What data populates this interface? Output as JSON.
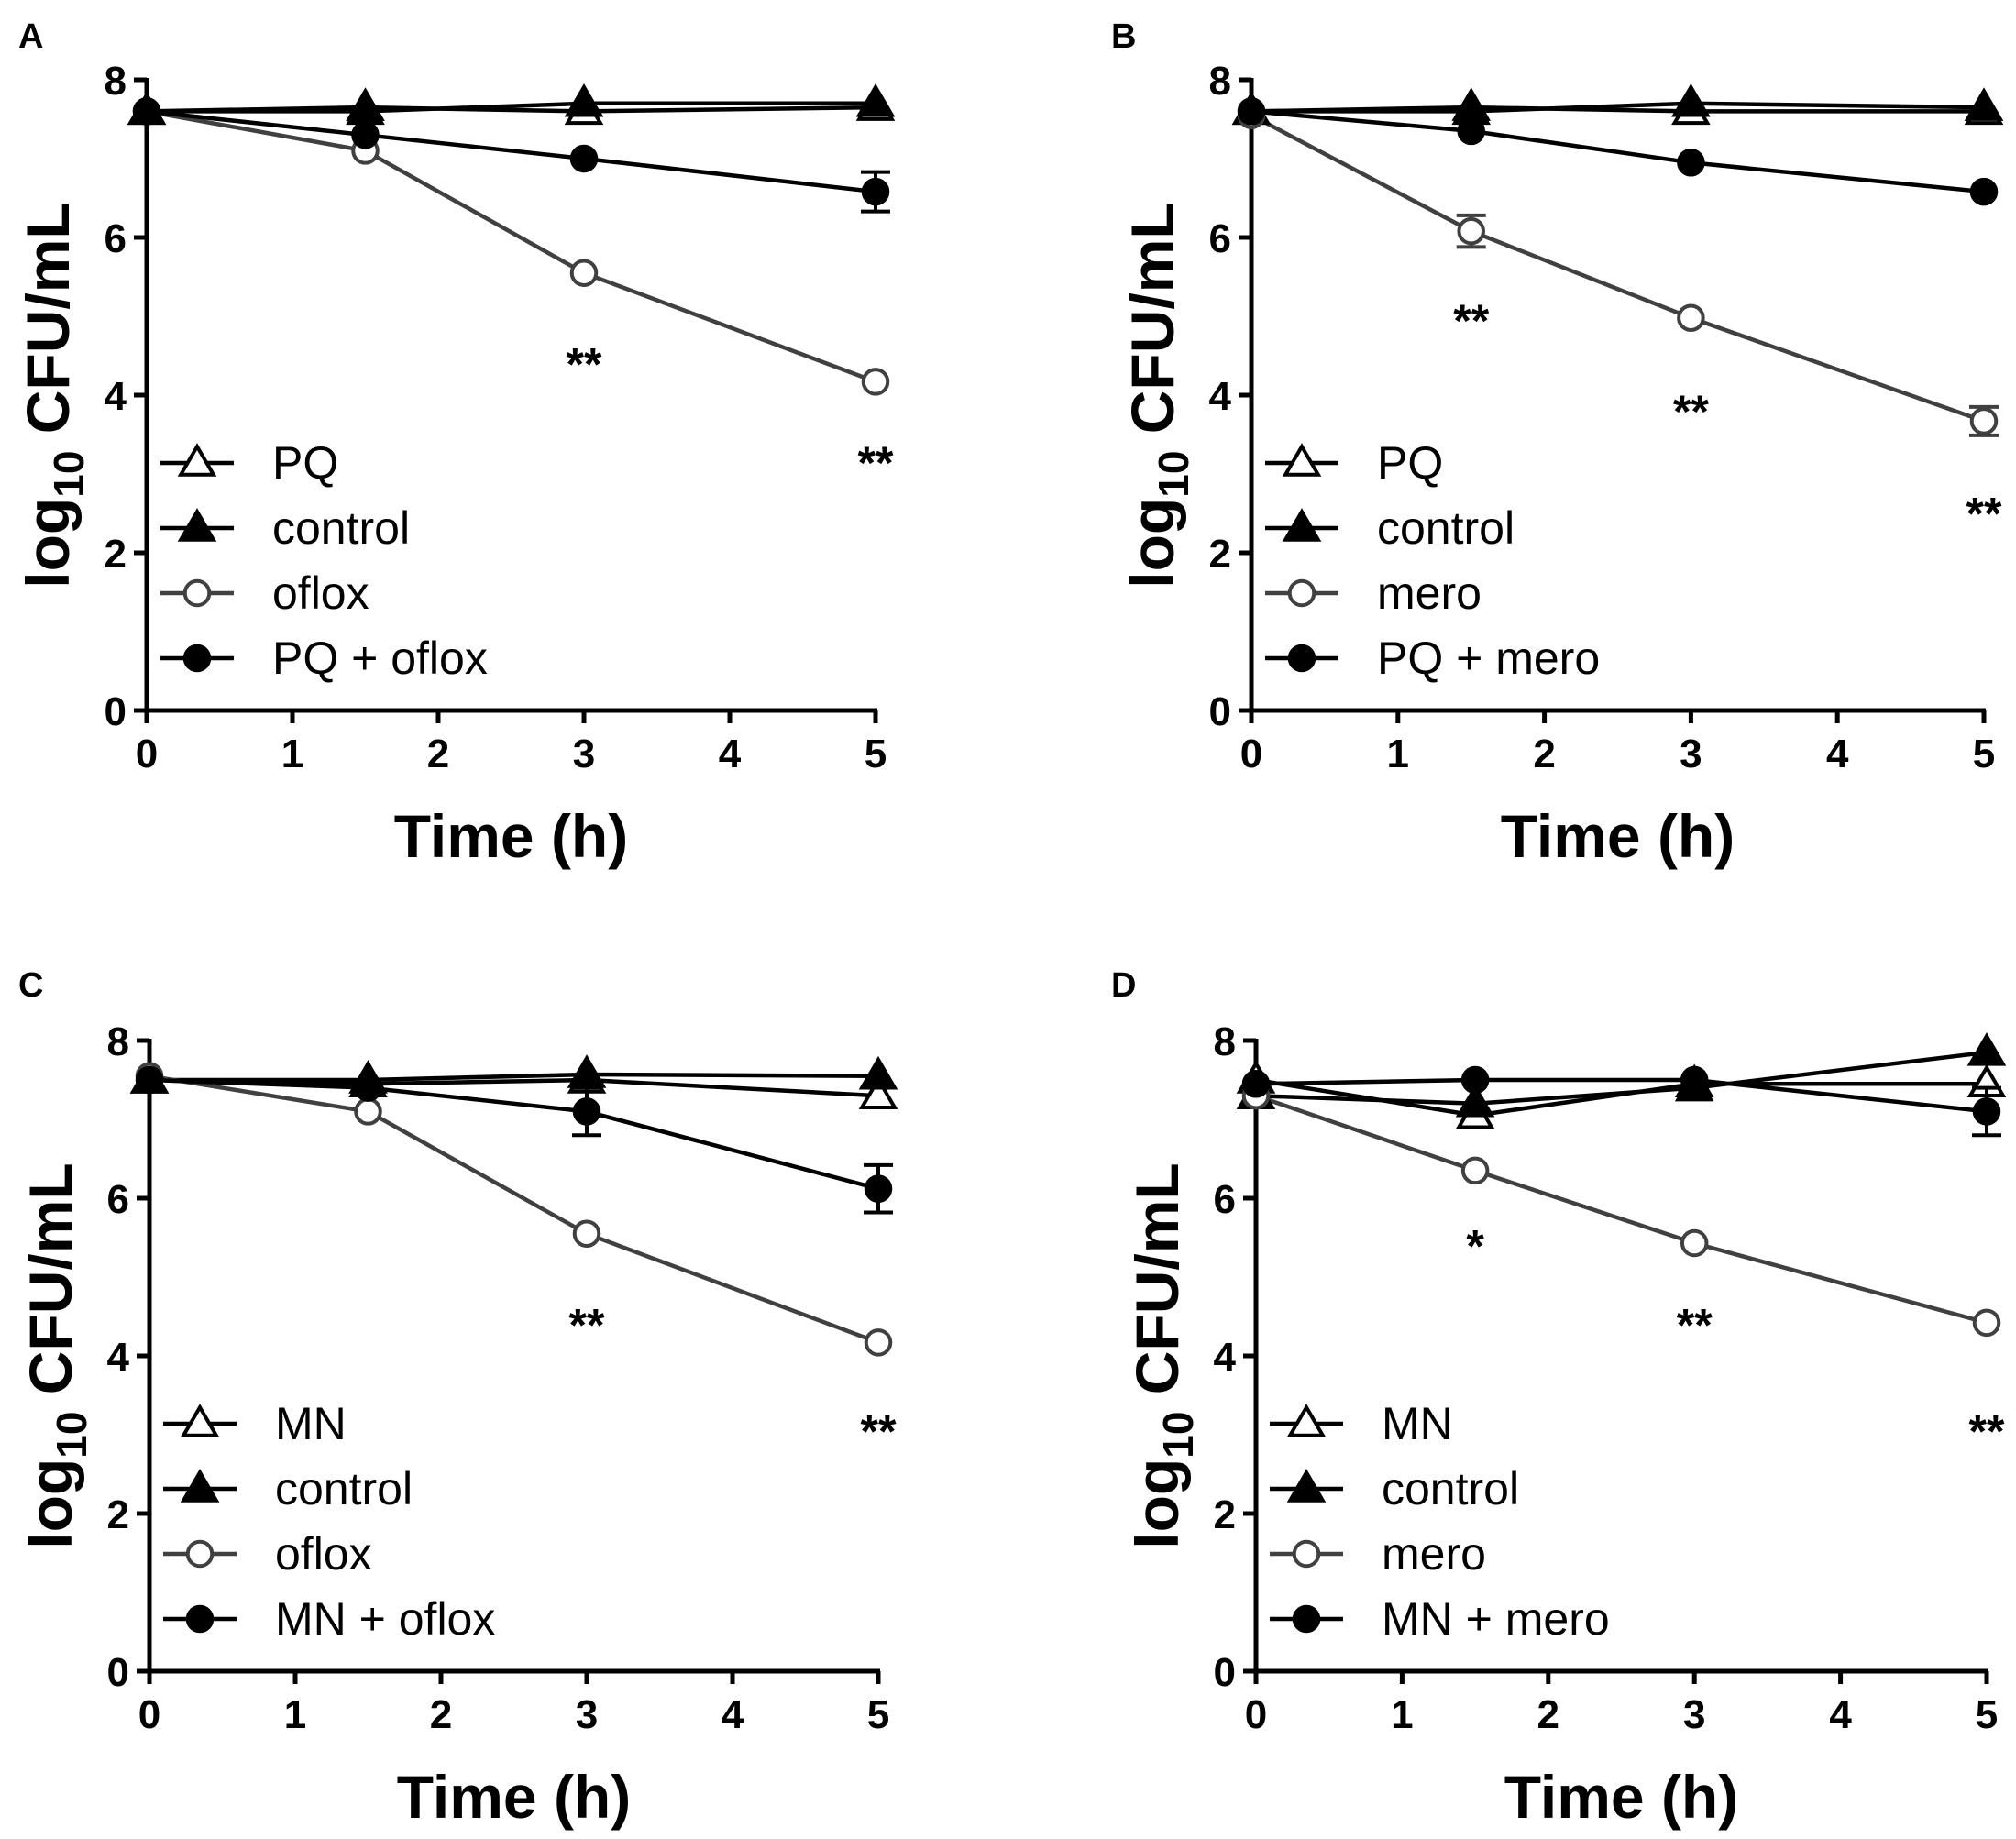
{
  "figure": {
    "background": "#ffffff"
  },
  "colors": {
    "ink": "#000000",
    "grey": "#404040",
    "paper": "#ffffff"
  },
  "chart_data": [
    {
      "panel_label": "A",
      "type": "line",
      "xlabel": "Time (h)",
      "ylabel_main": "log",
      "ylabel_sub": "10",
      "ylabel_tail": " CFU/mL",
      "xlim": [
        0,
        5
      ],
      "ylim": [
        0,
        8
      ],
      "xticks": [
        0,
        1,
        2,
        3,
        4,
        5
      ],
      "yticks": [
        0,
        2,
        4,
        6,
        8
      ],
      "legend_position": "bottom-left",
      "series": [
        {
          "name": "PQ",
          "marker": "triangle-open",
          "color": "#000000",
          "x": [
            0,
            1.5,
            3,
            5
          ],
          "y": [
            7.6,
            7.65,
            7.6,
            7.65
          ],
          "err": [
            0,
            0,
            0,
            0
          ]
        },
        {
          "name": "control",
          "marker": "triangle-filled",
          "color": "#000000",
          "x": [
            0,
            1.5,
            3,
            5
          ],
          "y": [
            7.6,
            7.6,
            7.7,
            7.7
          ],
          "err": [
            0,
            0,
            0,
            0
          ]
        },
        {
          "name": "oflox",
          "marker": "circle-open",
          "color": "#404040",
          "x": [
            0,
            1.5,
            3,
            5
          ],
          "y": [
            7.6,
            7.1,
            5.55,
            4.17
          ],
          "err": [
            0,
            0,
            0,
            0
          ]
        },
        {
          "name": "PQ + oflox",
          "marker": "circle-filled",
          "color": "#000000",
          "x": [
            0,
            1.5,
            3,
            5
          ],
          "y": [
            7.6,
            7.3,
            7.0,
            6.58
          ],
          "err": [
            0,
            0,
            0,
            0.25
          ]
        }
      ],
      "annotations": [
        {
          "text": "**",
          "x": 3,
          "y": 4.45
        },
        {
          "text": "**",
          "x": 5,
          "y": 3.2
        }
      ]
    },
    {
      "panel_label": "B",
      "type": "line",
      "xlabel": "Time (h)",
      "ylabel_main": "log",
      "ylabel_sub": "10",
      "ylabel_tail": " CFU/mL",
      "xlim": [
        0,
        5
      ],
      "ylim": [
        0,
        8
      ],
      "xticks": [
        0,
        1,
        2,
        3,
        4,
        5
      ],
      "yticks": [
        0,
        2,
        4,
        6,
        8
      ],
      "legend_position": "bottom-left",
      "series": [
        {
          "name": "PQ",
          "marker": "triangle-open",
          "color": "#000000",
          "x": [
            0,
            1.5,
            3,
            5
          ],
          "y": [
            7.6,
            7.65,
            7.6,
            7.6
          ],
          "err": [
            0,
            0,
            0,
            0
          ]
        },
        {
          "name": "control",
          "marker": "triangle-filled",
          "color": "#000000",
          "x": [
            0,
            1.5,
            3,
            5
          ],
          "y": [
            7.6,
            7.6,
            7.7,
            7.65
          ],
          "err": [
            0,
            0,
            0,
            0
          ]
        },
        {
          "name": "mero",
          "marker": "circle-open",
          "color": "#404040",
          "x": [
            0,
            1.5,
            3,
            5
          ],
          "y": [
            7.55,
            6.08,
            4.98,
            3.67
          ],
          "err": [
            0,
            0.2,
            0,
            0.18
          ]
        },
        {
          "name": "PQ + mero",
          "marker": "circle-filled",
          "color": "#000000",
          "x": [
            0,
            1.5,
            3,
            5
          ],
          "y": [
            7.6,
            7.35,
            6.95,
            6.58
          ],
          "err": [
            0,
            0,
            0,
            0
          ]
        }
      ],
      "annotations": [
        {
          "text": "**",
          "x": 1.5,
          "y": 5.0
        },
        {
          "text": "**",
          "x": 3,
          "y": 3.85
        },
        {
          "text": "**",
          "x": 5,
          "y": 2.55
        }
      ]
    },
    {
      "panel_label": "C",
      "type": "line",
      "xlabel": "Time (h)",
      "ylabel_main": "log",
      "ylabel_sub": "10",
      "ylabel_tail": " CFU/mL",
      "xlim": [
        0,
        5
      ],
      "ylim": [
        0,
        8
      ],
      "xticks": [
        0,
        1,
        2,
        3,
        4,
        5
      ],
      "yticks": [
        0,
        2,
        4,
        6,
        8
      ],
      "legend_position": "bottom-left",
      "series": [
        {
          "name": "MN",
          "marker": "triangle-open",
          "color": "#000000",
          "x": [
            0,
            1.5,
            3,
            5
          ],
          "y": [
            7.5,
            7.45,
            7.5,
            7.3
          ],
          "err": [
            0,
            0,
            0,
            0
          ]
        },
        {
          "name": "control",
          "marker": "triangle-filled",
          "color": "#000000",
          "x": [
            0,
            1.5,
            3,
            5
          ],
          "y": [
            7.5,
            7.5,
            7.57,
            7.55
          ],
          "err": [
            0,
            0,
            0,
            0
          ]
        },
        {
          "name": "oflox",
          "marker": "circle-open",
          "color": "#404040",
          "x": [
            0,
            1.5,
            3,
            5
          ],
          "y": [
            7.55,
            7.1,
            5.55,
            4.17
          ],
          "err": [
            0,
            0,
            0,
            0
          ]
        },
        {
          "name": "MN + oflox",
          "marker": "circle-filled",
          "color": "#000000",
          "x": [
            0,
            1.5,
            3,
            5
          ],
          "y": [
            7.5,
            7.4,
            7.1,
            6.12
          ],
          "err": [
            0,
            0,
            0.3,
            0.3
          ]
        }
      ],
      "annotations": [
        {
          "text": "**",
          "x": 3,
          "y": 4.45
        },
        {
          "text": "**",
          "x": 5,
          "y": 3.1
        }
      ]
    },
    {
      "panel_label": "D",
      "type": "line",
      "xlabel": "Time (h)",
      "ylabel_main": "log",
      "ylabel_sub": "10",
      "ylabel_tail": " CFU/mL",
      "xlim": [
        0,
        5
      ],
      "ylim": [
        0,
        8
      ],
      "xticks": [
        0,
        1,
        2,
        3,
        4,
        5
      ],
      "yticks": [
        0,
        2,
        4,
        6,
        8
      ],
      "legend_position": "bottom-left",
      "series": [
        {
          "name": "MN",
          "marker": "triangle-open",
          "color": "#000000",
          "x": [
            0,
            1.5,
            3,
            5
          ],
          "y": [
            7.5,
            7.05,
            7.45,
            7.45
          ],
          "err": [
            0,
            0,
            0,
            0
          ]
        },
        {
          "name": "control",
          "marker": "triangle-filled",
          "color": "#000000",
          "x": [
            0,
            1.5,
            3,
            5
          ],
          "y": [
            7.3,
            7.2,
            7.4,
            7.85
          ],
          "err": [
            0,
            0,
            0,
            0
          ]
        },
        {
          "name": "mero",
          "marker": "circle-open",
          "color": "#404040",
          "x": [
            0,
            1.5,
            3,
            5
          ],
          "y": [
            7.3,
            6.35,
            5.43,
            4.42
          ],
          "err": [
            0,
            0,
            0,
            0
          ]
        },
        {
          "name": "MN + mero",
          "marker": "circle-filled",
          "color": "#000000",
          "x": [
            0,
            1.5,
            3,
            5
          ],
          "y": [
            7.45,
            7.5,
            7.5,
            7.1
          ],
          "err": [
            0,
            0,
            0,
            0.3
          ]
        }
      ],
      "annotations": [
        {
          "text": "*",
          "x": 1.5,
          "y": 5.45
        },
        {
          "text": "**",
          "x": 3,
          "y": 4.45
        },
        {
          "text": "**",
          "x": 5,
          "y": 3.1
        }
      ]
    }
  ]
}
